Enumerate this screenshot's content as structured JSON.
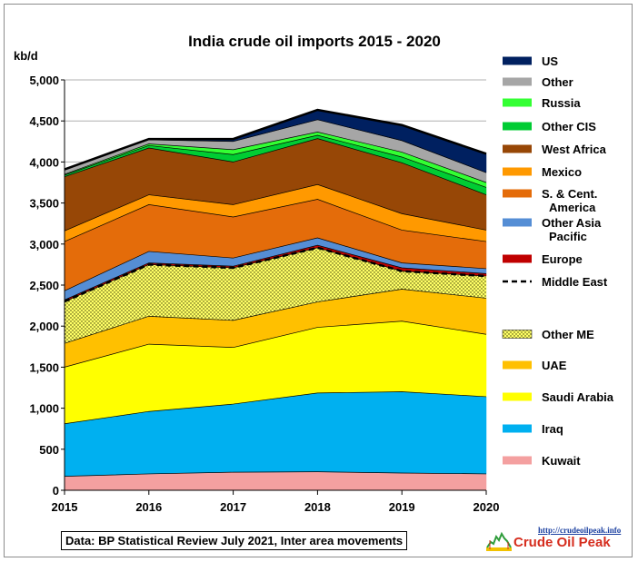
{
  "chart_data": {
    "type": "area",
    "title": "India crude oil imports  2015 - 2020",
    "ylabel": "kb/d",
    "xlabel": "",
    "x": [
      2015,
      2016,
      2017,
      2018,
      2019,
      2020
    ],
    "x_tick_labels": [
      "2015",
      "2016",
      "2017",
      "2018",
      "2019",
      "2020"
    ],
    "ylim": [
      0,
      5000
    ],
    "y_tick_labels": [
      "0",
      "500",
      "1,000",
      "1,500",
      "2,000",
      "2,500",
      "3,000",
      "3,500",
      "4,000",
      "4,500",
      "5,000"
    ],
    "y_ticks": [
      0,
      500,
      1000,
      1500,
      2000,
      2500,
      3000,
      3500,
      4000,
      4500,
      5000
    ],
    "stacked": true,
    "grid": "horizontal",
    "legend": "right",
    "series": [
      {
        "name": "Kuwait",
        "color": "#f4a0a0",
        "values": [
          170,
          200,
          220,
          225,
          210,
          200
        ]
      },
      {
        "name": "Iraq",
        "color": "#00b0f0",
        "values": [
          640,
          760,
          830,
          960,
          990,
          940
        ]
      },
      {
        "name": "Saudi Arabia",
        "color": "#ffff00",
        "values": [
          690,
          820,
          690,
          800,
          860,
          760
        ]
      },
      {
        "name": "UAE",
        "color": "#ffc000",
        "values": [
          290,
          340,
          330,
          310,
          390,
          440
        ]
      },
      {
        "name": "Other ME",
        "color": "#ffff66",
        "pattern": "dots",
        "values": [
          510,
          630,
          640,
          660,
          220,
          270
        ]
      },
      {
        "name": "Europe",
        "color": "#c00000",
        "values": [
          20,
          20,
          20,
          30,
          40,
          30
        ]
      },
      {
        "name": "Other Asia Pacific",
        "color": "#558ed5",
        "values": [
          110,
          140,
          100,
          90,
          60,
          60
        ]
      },
      {
        "name": "S. & Cent. America",
        "color": "#e46c0a",
        "values": [
          600,
          570,
          500,
          470,
          400,
          330
        ]
      },
      {
        "name": "Mexico",
        "color": "#ff9900",
        "values": [
          130,
          120,
          150,
          180,
          200,
          140
        ]
      },
      {
        "name": "West Africa",
        "color": "#974706",
        "values": [
          660,
          570,
          520,
          560,
          620,
          430
        ]
      },
      {
        "name": "Other CIS",
        "color": "#00cc33",
        "values": [
          20,
          30,
          90,
          40,
          70,
          90
        ]
      },
      {
        "name": "Russia",
        "color": "#33ff33",
        "values": [
          10,
          20,
          60,
          40,
          60,
          60
        ]
      },
      {
        "name": "Other",
        "color": "#a6a6a6",
        "values": [
          60,
          50,
          100,
          150,
          140,
          120
        ]
      },
      {
        "name": "US",
        "color": "#002060",
        "values": [
          0,
          10,
          30,
          120,
          190,
          230
        ]
      }
    ],
    "middle_east_line": {
      "name": "Middle East",
      "style": "dashed",
      "color": "#000000",
      "values": [
        2300,
        2750,
        2710,
        2955,
        2670,
        2610
      ]
    },
    "legend_entries": [
      {
        "label": "US",
        "color": "#002060",
        "kind": "box"
      },
      {
        "label": "Other",
        "color": "#a6a6a6",
        "kind": "box"
      },
      {
        "label": "Russia",
        "color": "#33ff33",
        "kind": "box"
      },
      {
        "label": "Other CIS",
        "color": "#00cc33",
        "kind": "box"
      },
      {
        "label": "West Africa",
        "color": "#974706",
        "kind": "box"
      },
      {
        "label": "Mexico",
        "color": "#ff9900",
        "kind": "box"
      },
      {
        "label": "S. & Cent.",
        "label2": "America",
        "color": "#e46c0a",
        "kind": "box"
      },
      {
        "label": "Other Asia",
        "label2": "Pacific",
        "color": "#558ed5",
        "kind": "box"
      },
      {
        "label": "Europe",
        "color": "#c00000",
        "kind": "box"
      },
      {
        "label": "Middle East",
        "color": "#000000",
        "kind": "dash"
      },
      {
        "label": "Other ME",
        "color": "#ffff66",
        "kind": "dots"
      },
      {
        "label": "UAE",
        "color": "#ffc000",
        "kind": "box"
      },
      {
        "label": "Saudi Arabia",
        "color": "#ffff00",
        "kind": "box"
      },
      {
        "label": "Iraq",
        "color": "#00b0f0",
        "kind": "box"
      },
      {
        "label": "Kuwait",
        "color": "#f4a0a0",
        "kind": "box"
      }
    ]
  },
  "footer": {
    "source": "Data: BP Statistical Review July 2021, Inter area movements",
    "logo_url": "http://crudeoilpeak.info",
    "logo_name": "Crude Oil Peak"
  }
}
